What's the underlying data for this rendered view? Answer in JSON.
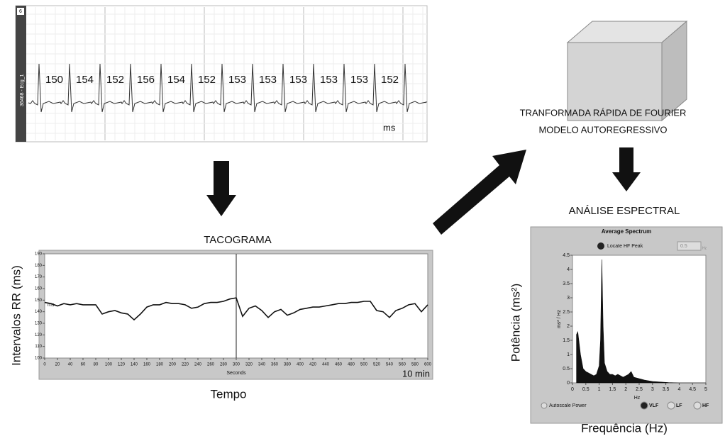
{
  "ecg": {
    "corner": "6",
    "channel": "36468 - Ecg_1",
    "rr_intervals": [
      150,
      154,
      152,
      156,
      154,
      152,
      153,
      153,
      153,
      153,
      153,
      152
    ],
    "unit": "ms"
  },
  "tachogram": {
    "title": "TACOGRAMA",
    "ylabel": "Intervalos RR (ms)",
    "xlabel": "Tempo",
    "axis_ylabel": "ms",
    "axis_xlabel": "Seconds",
    "duration": "10 min",
    "ylim": [
      100,
      190
    ],
    "yticks": [
      100,
      110,
      120,
      130,
      140,
      150,
      160,
      170,
      180,
      190
    ],
    "xlim": [
      0,
      600
    ],
    "xticks": [
      0,
      20,
      40,
      60,
      80,
      100,
      120,
      140,
      160,
      180,
      200,
      220,
      240,
      260,
      280,
      300,
      320,
      340,
      360,
      380,
      400,
      420,
      440,
      460,
      480,
      500,
      520,
      540,
      560,
      580,
      600
    ],
    "x": [
      0,
      10,
      20,
      30,
      40,
      50,
      60,
      70,
      80,
      90,
      100,
      110,
      120,
      130,
      140,
      150,
      160,
      170,
      180,
      190,
      200,
      210,
      220,
      230,
      240,
      250,
      260,
      270,
      280,
      290,
      300,
      310,
      320,
      330,
      340,
      350,
      360,
      370,
      380,
      390,
      400,
      410,
      420,
      430,
      440,
      450,
      460,
      470,
      480,
      490,
      500,
      510,
      520,
      530,
      540,
      550,
      560,
      570,
      580,
      590,
      600
    ],
    "values": [
      148,
      147,
      145,
      147,
      146,
      147,
      146,
      146,
      146,
      138,
      140,
      141,
      139,
      138,
      133,
      138,
      144,
      146,
      146,
      148,
      147,
      147,
      146,
      143,
      144,
      147,
      148,
      148,
      149,
      151,
      152,
      136,
      143,
      145,
      141,
      135,
      140,
      142,
      137,
      139,
      142,
      143,
      144,
      144,
      145,
      146,
      147,
      147,
      148,
      148,
      149,
      149,
      141,
      140,
      135,
      141,
      143,
      146,
      147,
      140,
      146
    ]
  },
  "process": {
    "line1": "TRANFORMADA RÁPIDA DE FOURIER",
    "line2": "MODELO AUTOREGRESSIVO"
  },
  "spectrum": {
    "heading": "ANÁLISE ESPECTRAL",
    "panel_title": "Average Spectrum",
    "locate": "Locate HF Peak",
    "freq_input": "0.5",
    "freq_unit": "Hz",
    "ylabel": "Potência (ms²)",
    "xlabel": "Frequência (Hz)",
    "axis_ylabel": "ms² / Hz",
    "axis_xlabel": "Hz",
    "ylim": [
      0,
      4.5
    ],
    "yticks": [
      0,
      0.5,
      1,
      1.5,
      2,
      2.5,
      3,
      3.5,
      4,
      4.5
    ],
    "xlim": [
      0,
      5
    ],
    "xticks": [
      0,
      0.5,
      1,
      1.5,
      2,
      2.5,
      3,
      3.5,
      4,
      4.5,
      5
    ],
    "x": [
      0.15,
      0.2,
      0.3,
      0.4,
      0.5,
      0.6,
      0.7,
      0.8,
      0.9,
      1.0,
      1.05,
      1.1,
      1.15,
      1.2,
      1.3,
      1.4,
      1.5,
      1.6,
      1.7,
      1.8,
      1.9,
      2.0,
      2.1,
      2.2,
      2.3,
      2.5,
      2.7,
      3.0,
      3.3,
      3.6,
      4.0,
      5.0
    ],
    "values": [
      1.7,
      1.8,
      1.0,
      0.5,
      0.4,
      0.35,
      0.3,
      0.25,
      0.3,
      0.6,
      1.5,
      4.35,
      2.0,
      0.7,
      0.4,
      0.3,
      0.3,
      0.25,
      0.3,
      0.25,
      0.2,
      0.25,
      0.3,
      0.4,
      0.2,
      0.15,
      0.1,
      0.05,
      0.03,
      0.01,
      0,
      0
    ],
    "autoscale": "Autoscale Power",
    "bands": [
      "VLF",
      "LF",
      "HF"
    ]
  }
}
